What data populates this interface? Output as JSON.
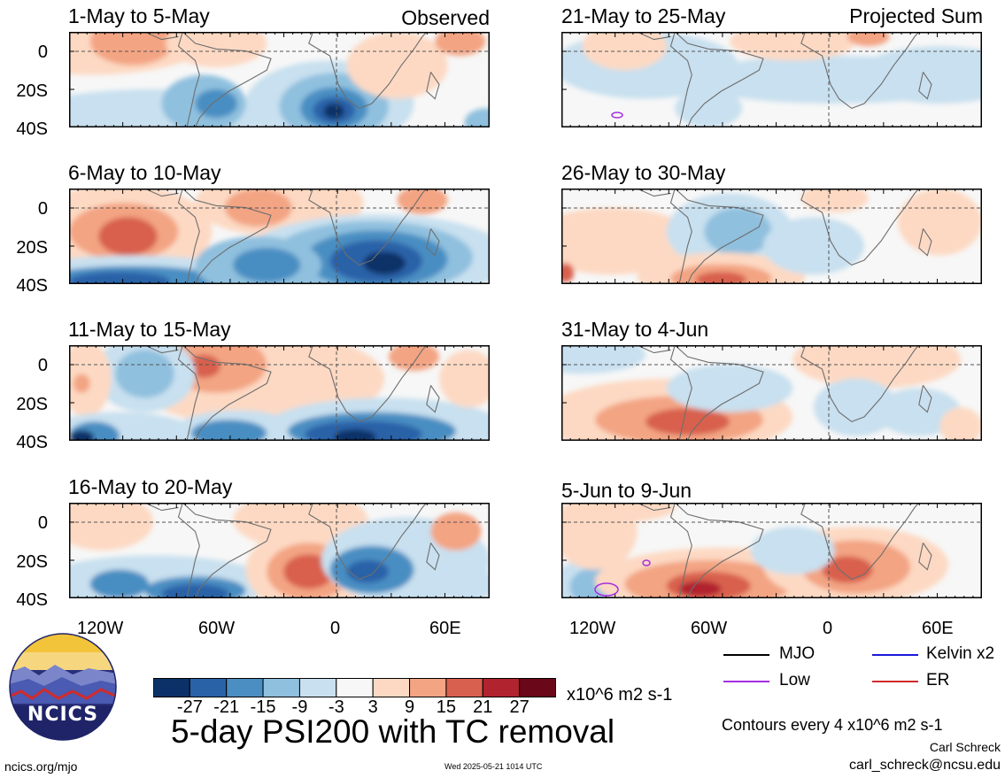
{
  "panel_titles": {
    "left": [
      "1-May to 5-May",
      "6-May to 10-May",
      "11-May to 15-May",
      "16-May to 20-May"
    ],
    "right": [
      "21-May to 25-May",
      "26-May to 30-May",
      "31-May to 4-Jun",
      "5-Jun to 9-Jun"
    ]
  },
  "column_labels": {
    "left": "Observed",
    "right": "Projected Sum"
  },
  "y_ticks": [
    "0",
    "20S",
    "40S"
  ],
  "x_ticks": [
    "120W",
    "60W",
    "0",
    "60E"
  ],
  "colorbar": {
    "colors": [
      "#0b3168",
      "#2a62a8",
      "#4a8ec2",
      "#8fc0de",
      "#c8e0ef",
      "#f7f7f7",
      "#fdd9c3",
      "#f3a483",
      "#d8604e",
      "#b1232e",
      "#6a0718"
    ],
    "labels": [
      "-27",
      "-21",
      "-15",
      "-9",
      "-3",
      "3",
      "9",
      "15",
      "21",
      "27"
    ],
    "units": "x10^6 m2 s-1"
  },
  "title": "5-day PSI200 with TC removal",
  "legend": [
    {
      "label": "MJO",
      "color": "#000000"
    },
    {
      "label": "Kelvin x2",
      "color": "#1a1ad8"
    },
    {
      "label": "Low",
      "color": "#a62ee0"
    },
    {
      "label": "ER",
      "color": "#d42a2a"
    }
  ],
  "contour_note": "Contours every 4 x10^6 m2 s-1",
  "author": "Carl Schreck",
  "email": "carl_schreck@ncsu.edu",
  "website": "ncics.org/mjo",
  "timestamp": "Wed 2025-05-21 1014 UTC",
  "logo_text": "NCICS",
  "panels": [
    {
      "blobs": [
        [
          "#fdd9c3",
          0.05,
          0.1,
          0.28,
          0.35
        ],
        [
          "#f3a483",
          0.15,
          0.1,
          0.1,
          0.25
        ],
        [
          "#fdd9c3",
          0.35,
          0.12,
          0.12,
          0.25
        ],
        [
          "#c8e0ef",
          0.2,
          0.85,
          0.3,
          0.25
        ],
        [
          "#8fc0de",
          0.32,
          0.75,
          0.1,
          0.3
        ],
        [
          "#4a8ec2",
          0.35,
          0.75,
          0.05,
          0.15
        ],
        [
          "#c8e0ef",
          0.62,
          0.75,
          0.2,
          0.45
        ],
        [
          "#8fc0de",
          0.63,
          0.78,
          0.13,
          0.35
        ],
        [
          "#4a8ec2",
          0.63,
          0.8,
          0.08,
          0.22
        ],
        [
          "#2a62a8",
          0.63,
          0.82,
          0.05,
          0.14
        ],
        [
          "#0b3168",
          0.63,
          0.83,
          0.025,
          0.08
        ],
        [
          "#fdd9c3",
          0.78,
          0.35,
          0.12,
          0.35
        ],
        [
          "#f3a483",
          0.93,
          0.1,
          0.06,
          0.15
        ],
        [
          "#8fc0de",
          0.99,
          0.95,
          0.05,
          0.15
        ]
      ]
    },
    {
      "blobs": [
        [
          "#fdd9c3",
          0.12,
          0.45,
          0.22,
          0.5
        ],
        [
          "#f3a483",
          0.13,
          0.45,
          0.13,
          0.3
        ],
        [
          "#d8604e",
          0.14,
          0.5,
          0.07,
          0.2
        ],
        [
          "#fdd9c3",
          0.5,
          0.15,
          0.2,
          0.35
        ],
        [
          "#f3a483",
          0.45,
          0.2,
          0.08,
          0.2
        ],
        [
          "#c8e0ef",
          0.73,
          0.72,
          0.32,
          0.45
        ],
        [
          "#8fc0de",
          0.72,
          0.72,
          0.24,
          0.38
        ],
        [
          "#4a8ec2",
          0.73,
          0.74,
          0.17,
          0.3
        ],
        [
          "#2a62a8",
          0.73,
          0.76,
          0.11,
          0.22
        ],
        [
          "#0b3168",
          0.75,
          0.78,
          0.05,
          0.12
        ],
        [
          "#c8e0ef",
          0.15,
          0.95,
          0.3,
          0.25
        ],
        [
          "#4a8ec2",
          0.15,
          0.97,
          0.22,
          0.16
        ],
        [
          "#2a62a8",
          0.12,
          0.97,
          0.12,
          0.1
        ],
        [
          "#8fc0de",
          0.45,
          0.8,
          0.15,
          0.3
        ],
        [
          "#4a8ec2",
          0.47,
          0.8,
          0.08,
          0.18
        ],
        [
          "#f3a483",
          0.84,
          0.12,
          0.06,
          0.15
        ]
      ]
    },
    {
      "blobs": [
        [
          "#fdd9c3",
          0.45,
          0.35,
          0.3,
          0.5
        ],
        [
          "#f3a483",
          0.35,
          0.2,
          0.12,
          0.3
        ],
        [
          "#d8604e",
          0.32,
          0.22,
          0.04,
          0.12
        ],
        [
          "#c8e0ef",
          0.18,
          0.3,
          0.12,
          0.4
        ],
        [
          "#8fc0de",
          0.18,
          0.3,
          0.07,
          0.25
        ],
        [
          "#fdd9c3",
          0.04,
          0.35,
          0.06,
          0.4
        ],
        [
          "#f3a483",
          0.03,
          0.4,
          0.02,
          0.1
        ],
        [
          "#c8e0ef",
          0.12,
          0.92,
          0.18,
          0.22
        ],
        [
          "#4a8ec2",
          0.06,
          0.95,
          0.06,
          0.15
        ],
        [
          "#0b3168",
          0.03,
          0.97,
          0.03,
          0.08
        ],
        [
          "#c8e0ef",
          0.4,
          0.9,
          0.15,
          0.22
        ],
        [
          "#4a8ec2",
          0.38,
          0.92,
          0.09,
          0.14
        ],
        [
          "#c8e0ef",
          0.75,
          0.85,
          0.28,
          0.3
        ],
        [
          "#4a8ec2",
          0.72,
          0.9,
          0.2,
          0.2
        ],
        [
          "#2a62a8",
          0.7,
          0.93,
          0.14,
          0.14
        ],
        [
          "#0b3168",
          0.68,
          0.96,
          0.05,
          0.08
        ],
        [
          "#fdd9c3",
          0.95,
          0.35,
          0.07,
          0.3
        ],
        [
          "#f3a483",
          0.82,
          0.12,
          0.06,
          0.15
        ]
      ]
    },
    {
      "blobs": [
        [
          "#fdd9c3",
          0.08,
          0.2,
          0.12,
          0.3
        ],
        [
          "#fdd9c3",
          0.55,
          0.18,
          0.16,
          0.3
        ],
        [
          "#c8e0ef",
          0.2,
          0.85,
          0.28,
          0.3
        ],
        [
          "#4a8ec2",
          0.12,
          0.85,
          0.07,
          0.15
        ],
        [
          "#4a8ec2",
          0.3,
          0.92,
          0.12,
          0.15
        ],
        [
          "#2a62a8",
          0.3,
          0.95,
          0.08,
          0.1
        ],
        [
          "#fdd9c3",
          0.57,
          0.7,
          0.15,
          0.45
        ],
        [
          "#f3a483",
          0.57,
          0.72,
          0.1,
          0.3
        ],
        [
          "#d8604e",
          0.57,
          0.72,
          0.06,
          0.18
        ],
        [
          "#c8e0ef",
          0.8,
          0.6,
          0.2,
          0.45
        ],
        [
          "#4a8ec2",
          0.72,
          0.7,
          0.1,
          0.25
        ],
        [
          "#2a62a8",
          0.71,
          0.72,
          0.05,
          0.12
        ],
        [
          "#f3a483",
          0.92,
          0.3,
          0.06,
          0.2
        ],
        [
          "#c8e0ef",
          0.95,
          0.85,
          0.06,
          0.2
        ]
      ]
    },
    {
      "blobs": [
        [
          "#c8e0ef",
          0.2,
          0.35,
          0.22,
          0.35
        ],
        [
          "#c8e0ef",
          0.65,
          0.5,
          0.35,
          0.25
        ],
        [
          "#c8e0ef",
          0.9,
          0.45,
          0.2,
          0.3
        ],
        [
          "#fdd9c3",
          0.15,
          0.15,
          0.1,
          0.25
        ],
        [
          "#fdd9c3",
          0.55,
          0.1,
          0.15,
          0.2
        ],
        [
          "#f3a483",
          0.73,
          0.05,
          0.05,
          0.1
        ],
        [
          "#c8e0ef",
          0.35,
          0.8,
          0.08,
          0.2
        ]
      ]
    },
    {
      "blobs": [
        [
          "#fdd9c3",
          0.12,
          0.55,
          0.2,
          0.35
        ],
        [
          "#c8e0ef",
          0.4,
          0.45,
          0.15,
          0.4
        ],
        [
          "#8fc0de",
          0.42,
          0.45,
          0.08,
          0.25
        ],
        [
          "#fdd9c3",
          0.38,
          0.92,
          0.2,
          0.25
        ],
        [
          "#f3a483",
          0.38,
          0.94,
          0.12,
          0.15
        ],
        [
          "#d8604e",
          0.38,
          0.95,
          0.06,
          0.08
        ],
        [
          "#c8e0ef",
          0.6,
          0.6,
          0.12,
          0.3
        ],
        [
          "#fdd9c3",
          0.9,
          0.35,
          0.1,
          0.35
        ],
        [
          "#d8604e",
          0.01,
          0.88,
          0.02,
          0.1
        ],
        [
          "#fdd9c3",
          0.65,
          0.1,
          0.08,
          0.15
        ]
      ]
    },
    {
      "blobs": [
        [
          "#fdd9c3",
          0.25,
          0.75,
          0.3,
          0.4
        ],
        [
          "#f3a483",
          0.28,
          0.78,
          0.2,
          0.25
        ],
        [
          "#d8604e",
          0.3,
          0.8,
          0.1,
          0.14
        ],
        [
          "#c8e0ef",
          0.4,
          0.45,
          0.15,
          0.25
        ],
        [
          "#c8e0ef",
          0.05,
          0.1,
          0.15,
          0.2
        ],
        [
          "#fdd9c3",
          0.75,
          0.15,
          0.2,
          0.3
        ],
        [
          "#c8e0ef",
          0.7,
          0.65,
          0.1,
          0.3
        ],
        [
          "#c8e0ef",
          0.85,
          0.7,
          0.1,
          0.25
        ],
        [
          "#fdd9c3",
          0.95,
          0.85,
          0.05,
          0.2
        ]
      ]
    },
    {
      "blobs": [
        [
          "#c8e0ef",
          0.1,
          0.85,
          0.12,
          0.3
        ],
        [
          "#8fc0de",
          0.08,
          0.88,
          0.06,
          0.2
        ],
        [
          "#fdd9c3",
          0.38,
          0.82,
          0.3,
          0.35
        ],
        [
          "#f3a483",
          0.35,
          0.85,
          0.2,
          0.25
        ],
        [
          "#d8604e",
          0.35,
          0.87,
          0.1,
          0.15
        ],
        [
          "#b1232e",
          0.33,
          0.9,
          0.05,
          0.08
        ],
        [
          "#fdd9c3",
          0.7,
          0.65,
          0.22,
          0.4
        ],
        [
          "#f3a483",
          0.7,
          0.67,
          0.13,
          0.28
        ],
        [
          "#d8604e",
          0.68,
          0.7,
          0.06,
          0.14
        ],
        [
          "#fdd9c3",
          0.08,
          0.3,
          0.1,
          0.4
        ],
        [
          "#c8e0ef",
          0.55,
          0.5,
          0.1,
          0.25
        ],
        [
          "#fdd9c3",
          0.15,
          0.05,
          0.12,
          0.15
        ]
      ]
    }
  ]
}
